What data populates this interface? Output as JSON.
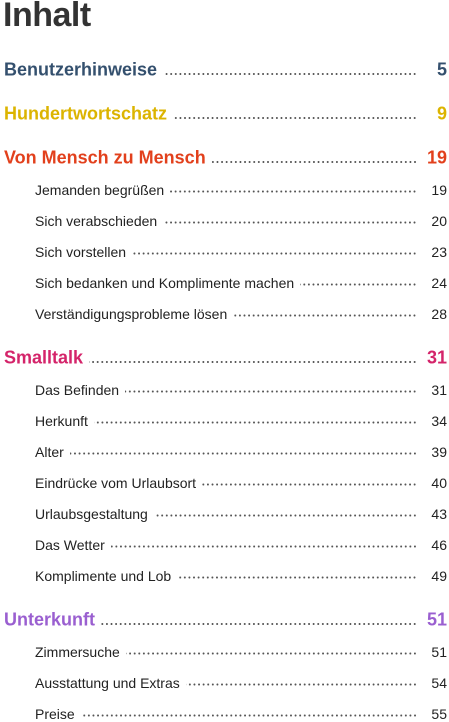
{
  "title": "Inhalt",
  "sections": [
    {
      "label": "Benutzerhinweise",
      "page": "5",
      "color": "#34506e",
      "entries": []
    },
    {
      "label": "Hundertwortschatz",
      "page": "9",
      "color": "#dcb400",
      "entries": []
    },
    {
      "label": "Von Mensch zu Mensch",
      "page": "19",
      "color": "#e2401c",
      "entries": [
        {
          "label": "Jemanden begrüßen",
          "page": "19"
        },
        {
          "label": "Sich verabschieden",
          "page": "20"
        },
        {
          "label": "Sich vorstellen",
          "page": "23"
        },
        {
          "label": "Sich bedanken und Komplimente machen",
          "page": "24"
        },
        {
          "label": "Verständigungsprobleme lösen",
          "page": "28"
        }
      ]
    },
    {
      "label": "Smalltalk",
      "page": "31",
      "color": "#d4246a",
      "entries": [
        {
          "label": "Das Befinden",
          "page": "31"
        },
        {
          "label": "Herkunft",
          "page": "34"
        },
        {
          "label": "Alter",
          "page": "39"
        },
        {
          "label": "Eindrücke vom Urlaubsort",
          "page": "40"
        },
        {
          "label": "Urlaubsgestaltung",
          "page": "43"
        },
        {
          "label": "Das Wetter",
          "page": "46"
        },
        {
          "label": "Komplimente und Lob",
          "page": "49"
        }
      ]
    },
    {
      "label": "Unterkunft",
      "page": "51",
      "color": "#9a5fd0",
      "entries": [
        {
          "label": "Zimmersuche",
          "page": "51"
        },
        {
          "label": "Ausstattung und Extras",
          "page": "54"
        },
        {
          "label": "Preise",
          "page": "55"
        }
      ]
    }
  ]
}
